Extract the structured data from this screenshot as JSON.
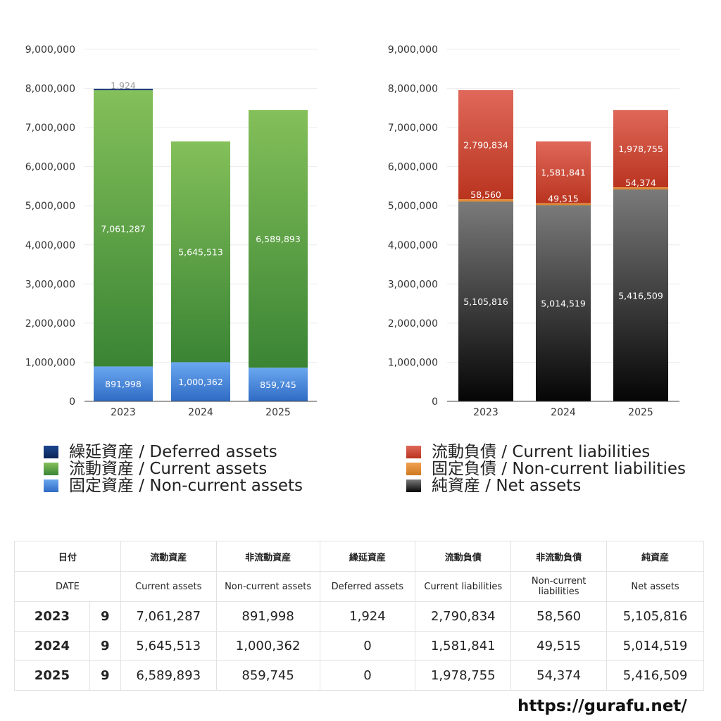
{
  "chart_data": [
    {
      "type": "bar",
      "stacked": true,
      "categories": [
        "2023",
        "2024",
        "2025"
      ],
      "ylim": [
        0,
        9000000
      ],
      "yticks": [
        "0",
        "1,000,000",
        "2,000,000",
        "3,000,000",
        "4,000,000",
        "5,000,000",
        "6,000,000",
        "7,000,000",
        "8,000,000",
        "9,000,000"
      ],
      "grid": true,
      "series": [
        {
          "name": "固定資産 / Non-current assets",
          "color": "#4a86d8",
          "values": [
            891998,
            1000362,
            859745
          ],
          "labels": [
            "891,998",
            "1,000,362",
            "859,745"
          ]
        },
        {
          "name": "流動資産 / Current assets",
          "color": "#56a341",
          "values": [
            7061287,
            5645513,
            6589893
          ],
          "labels": [
            "7,061,287",
            "5,645,513",
            "6,589,893"
          ]
        },
        {
          "name": "繰延資産 / Deferred assets",
          "color": "#0e2f6b",
          "values": [
            1924,
            0,
            0
          ],
          "labels": [
            "1,924",
            "",
            ""
          ]
        }
      ],
      "legend": [
        "繰延資産 / Deferred assets",
        "流動資産 / Current assets",
        "固定資産 / Non-current assets"
      ],
      "legend_colors": [
        "#0e2f6b",
        "#56a341",
        "#4a86d8"
      ]
    },
    {
      "type": "bar",
      "stacked": true,
      "categories": [
        "2023",
        "2024",
        "2025"
      ],
      "ylim": [
        0,
        9000000
      ],
      "yticks": [
        "0",
        "1,000,000",
        "2,000,000",
        "3,000,000",
        "4,000,000",
        "5,000,000",
        "6,000,000",
        "7,000,000",
        "8,000,000",
        "9,000,000"
      ],
      "grid": true,
      "series": [
        {
          "name": "純資産 / Net assets",
          "color": "#333333",
          "values": [
            5105816,
            5014519,
            5416509
          ],
          "labels": [
            "5,105,816",
            "5,014,519",
            "5,416,509"
          ]
        },
        {
          "name": "固定負債 / Non-current liabilities",
          "color": "#e08a2e",
          "values": [
            58560,
            49515,
            54374
          ],
          "labels": [
            "58,560",
            "49,515",
            "54,374"
          ]
        },
        {
          "name": "流動負債 / Current liabilities",
          "color": "#d04a35",
          "values": [
            2790834,
            1581841,
            1978755
          ],
          "labels": [
            "2,790,834",
            "1,581,841",
            "1,978,755"
          ]
        }
      ],
      "legend": [
        "流動負債 / Current liabilities",
        "固定負債 / Non-current liabilities",
        "純資産 / Net assets"
      ],
      "legend_colors": [
        "#d04a35",
        "#e08a2e",
        "#1e1e1e"
      ]
    }
  ],
  "table": {
    "header_ja": [
      "日付",
      "",
      "流動資産",
      "非流動資産",
      "繰延資産",
      "流動負債",
      "非流動負債",
      "純資産"
    ],
    "header_en": [
      "DATE",
      "",
      "Current assets",
      "Non-current assets",
      "Deferred assets",
      "Current liabilities",
      "Non-current liabilities",
      "Net assets"
    ],
    "rows": [
      [
        "2023",
        "9",
        "7,061,287",
        "891,998",
        "1,924",
        "2,790,834",
        "58,560",
        "5,105,816"
      ],
      [
        "2024",
        "9",
        "5,645,513",
        "1,000,362",
        "0",
        "1,581,841",
        "49,515",
        "5,014,519"
      ],
      [
        "2025",
        "9",
        "6,589,893",
        "859,745",
        "0",
        "1,978,755",
        "54,374",
        "5,416,509"
      ]
    ]
  },
  "watermark": "https://gurafu.net/"
}
